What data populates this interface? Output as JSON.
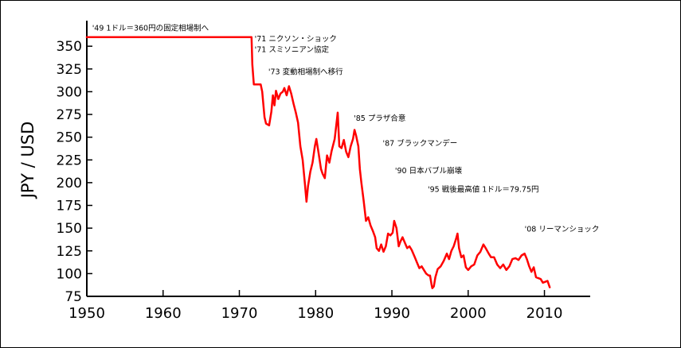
{
  "chart_data": {
    "type": "line",
    "title": "",
    "xlabel": "",
    "ylabel": "JPY / USD",
    "xlim": [
      1950,
      2016
    ],
    "ylim": [
      75,
      365
    ],
    "x_ticks": [
      1950,
      1960,
      1970,
      1980,
      1990,
      2000,
      2010
    ],
    "y_ticks": [
      75,
      100,
      125,
      150,
      175,
      200,
      225,
      250,
      275,
      300,
      325,
      350
    ],
    "grid": false,
    "legend": "none",
    "line_color": "#ff0000",
    "series": [
      {
        "values": [
          [
            1950,
            360
          ],
          [
            1971.6,
            360
          ],
          [
            1971.7,
            330
          ],
          [
            1971.9,
            308
          ],
          [
            1972.8,
            308
          ],
          [
            1973.0,
            300
          ],
          [
            1973.3,
            272
          ],
          [
            1973.5,
            265
          ],
          [
            1973.9,
            263
          ],
          [
            1974.2,
            278
          ],
          [
            1974.4,
            296
          ],
          [
            1974.6,
            285
          ],
          [
            1974.8,
            301
          ],
          [
            1975.1,
            292
          ],
          [
            1975.4,
            298
          ],
          [
            1975.7,
            300
          ],
          [
            1975.9,
            304
          ],
          [
            1976.2,
            296
          ],
          [
            1976.5,
            306
          ],
          [
            1976.8,
            298
          ],
          [
            1977.1,
            287
          ],
          [
            1977.4,
            277
          ],
          [
            1977.7,
            266
          ],
          [
            1978.0,
            240
          ],
          [
            1978.3,
            225
          ],
          [
            1978.6,
            198
          ],
          [
            1978.8,
            179
          ],
          [
            1979.0,
            196
          ],
          [
            1979.3,
            212
          ],
          [
            1979.6,
            222
          ],
          [
            1979.9,
            240
          ],
          [
            1980.1,
            248
          ],
          [
            1980.4,
            232
          ],
          [
            1980.7,
            215
          ],
          [
            1980.9,
            210
          ],
          [
            1981.2,
            205
          ],
          [
            1981.5,
            230
          ],
          [
            1981.8,
            222
          ],
          [
            1982.1,
            235
          ],
          [
            1982.5,
            248
          ],
          [
            1982.8,
            270
          ],
          [
            1982.9,
            277
          ],
          [
            1983.1,
            240
          ],
          [
            1983.4,
            238
          ],
          [
            1983.7,
            247
          ],
          [
            1984.0,
            234
          ],
          [
            1984.3,
            228
          ],
          [
            1984.6,
            240
          ],
          [
            1984.9,
            248
          ],
          [
            1985.1,
            258
          ],
          [
            1985.3,
            252
          ],
          [
            1985.6,
            240
          ],
          [
            1985.8,
            215
          ],
          [
            1986.0,
            200
          ],
          [
            1986.3,
            180
          ],
          [
            1986.6,
            158
          ],
          [
            1986.9,
            162
          ],
          [
            1987.2,
            153
          ],
          [
            1987.5,
            147
          ],
          [
            1987.8,
            140
          ],
          [
            1988.0,
            128
          ],
          [
            1988.3,
            125
          ],
          [
            1988.6,
            132
          ],
          [
            1988.9,
            124
          ],
          [
            1989.2,
            130
          ],
          [
            1989.5,
            144
          ],
          [
            1989.8,
            142
          ],
          [
            1990.1,
            145
          ],
          [
            1990.3,
            158
          ],
          [
            1990.6,
            150
          ],
          [
            1990.9,
            130
          ],
          [
            1991.1,
            135
          ],
          [
            1991.4,
            140
          ],
          [
            1991.7,
            134
          ],
          [
            1992.0,
            128
          ],
          [
            1992.3,
            130
          ],
          [
            1992.6,
            126
          ],
          [
            1993.0,
            118
          ],
          [
            1993.3,
            112
          ],
          [
            1993.6,
            106
          ],
          [
            1993.9,
            108
          ],
          [
            1994.2,
            104
          ],
          [
            1994.5,
            100
          ],
          [
            1994.8,
            98
          ],
          [
            1995.0,
            98
          ],
          [
            1995.2,
            88
          ],
          [
            1995.3,
            84
          ],
          [
            1995.5,
            86
          ],
          [
            1995.7,
            96
          ],
          [
            1996.0,
            105
          ],
          [
            1996.4,
            108
          ],
          [
            1996.8,
            114
          ],
          [
            1997.2,
            122
          ],
          [
            1997.5,
            116
          ],
          [
            1997.8,
            125
          ],
          [
            1998.1,
            130
          ],
          [
            1998.4,
            138
          ],
          [
            1998.6,
            144
          ],
          [
            1998.8,
            128
          ],
          [
            1999.1,
            118
          ],
          [
            1999.4,
            120
          ],
          [
            1999.7,
            107
          ],
          [
            2000.0,
            104
          ],
          [
            2000.4,
            108
          ],
          [
            2000.8,
            110
          ],
          [
            2001.2,
            120
          ],
          [
            2001.6,
            124
          ],
          [
            2002.0,
            132
          ],
          [
            2002.3,
            128
          ],
          [
            2002.7,
            122
          ],
          [
            2003.0,
            118
          ],
          [
            2003.4,
            118
          ],
          [
            2003.8,
            110
          ],
          [
            2004.2,
            106
          ],
          [
            2004.6,
            110
          ],
          [
            2005.0,
            104
          ],
          [
            2005.4,
            108
          ],
          [
            2005.8,
            116
          ],
          [
            2006.2,
            117
          ],
          [
            2006.6,
            115
          ],
          [
            2007.0,
            120
          ],
          [
            2007.4,
            122
          ],
          [
            2007.7,
            116
          ],
          [
            2008.0,
            108
          ],
          [
            2008.3,
            102
          ],
          [
            2008.6,
            107
          ],
          [
            2008.9,
            96
          ],
          [
            2009.2,
            95
          ],
          [
            2009.5,
            94
          ],
          [
            2009.8,
            90
          ],
          [
            2010.1,
            91
          ],
          [
            2010.4,
            92
          ],
          [
            2010.7,
            85
          ]
        ]
      }
    ],
    "annotations": [
      {
        "text": "'49  1ドル＝360円の固定相場制へ",
        "x": 1950.7,
        "y": 367
      },
      {
        "text": "'71  ニクソン・ショック",
        "x": 1972.0,
        "y": 355.5
      },
      {
        "text": "'71  スミソニアン協定",
        "x": 1972.0,
        "y": 343.5
      },
      {
        "text": "'73  変動相場制へ移行",
        "x": 1973.8,
        "y": 319
      },
      {
        "text": "'85  プラザ合意",
        "x": 1985.0,
        "y": 268
      },
      {
        "text": "'87  ブラックマンデー",
        "x": 1988.8,
        "y": 240.5
      },
      {
        "text": "'90  日本バブル崩壊",
        "x": 1990.4,
        "y": 210.5
      },
      {
        "text": "'95  戦後最高値  1ドル＝79.75円",
        "x": 1994.7,
        "y": 190
      },
      {
        "text": "'08  リーマンショック",
        "x": 2007.4,
        "y": 146
      }
    ]
  }
}
